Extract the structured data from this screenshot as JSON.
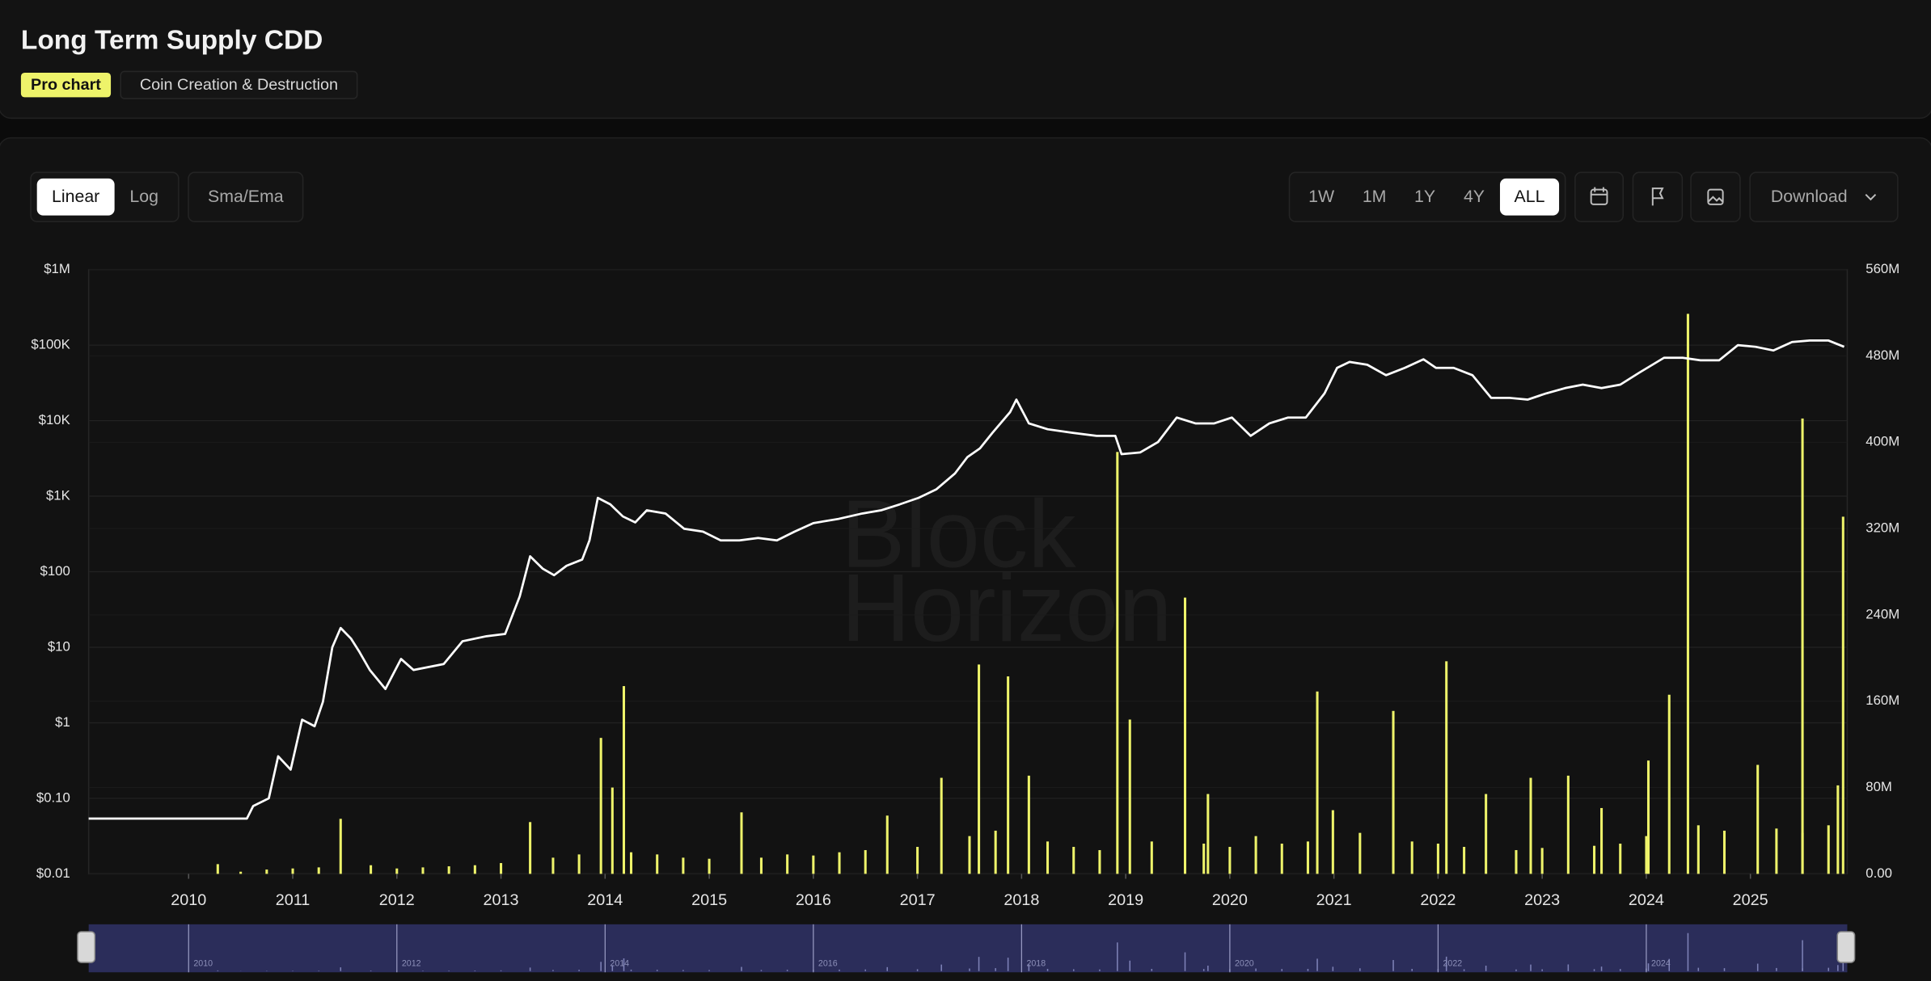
{
  "header": {
    "title": "Long Term Supply CDD",
    "badge": "Pro chart",
    "category": "Coin Creation & Destruction"
  },
  "toolbar": {
    "scale": [
      "Linear",
      "Log"
    ],
    "overlay": "Sma/Ema",
    "ranges": [
      "1W",
      "1M",
      "1Y",
      "4Y",
      "ALL"
    ],
    "download": "Download"
  },
  "watermark": [
    "Block",
    "Horizon"
  ],
  "chart_data": {
    "type": "combo",
    "xlim": [
      2009.04,
      2025.93
    ],
    "xticks": [
      2010,
      2011,
      2012,
      2013,
      2014,
      2015,
      2016,
      2017,
      2018,
      2019,
      2020,
      2021,
      2022,
      2023,
      2024,
      2025
    ],
    "ylim": [
      0.01,
      1000000
    ],
    "log_scale": true,
    "yticks": [
      {
        "value": 0.01,
        "label": "$0.01"
      },
      {
        "value": 0.1,
        "label": "$0.10"
      },
      {
        "value": 1,
        "label": "$1"
      },
      {
        "value": 10,
        "label": "$10"
      },
      {
        "value": 100,
        "label": "$100"
      },
      {
        "value": 1000,
        "label": "$1K"
      },
      {
        "value": 10000,
        "label": "$10K"
      },
      {
        "value": 100000,
        "label": "$100K"
      },
      {
        "value": 1000000,
        "label": "$1M"
      }
    ],
    "y2lim": [
      0,
      560000000
    ],
    "y2ticks": [
      {
        "value": 0,
        "label": "0.00"
      },
      {
        "value": 80000000,
        "label": "80M"
      },
      {
        "value": 160000000,
        "label": "160M"
      },
      {
        "value": 240000000,
        "label": "240M"
      },
      {
        "value": 320000000,
        "label": "320M"
      },
      {
        "value": 400000000,
        "label": "400M"
      },
      {
        "value": 480000000,
        "label": "480M"
      },
      {
        "value": 560000000,
        "label": "560M"
      }
    ],
    "grid": true,
    "series": [
      {
        "type": "line",
        "color": "#ffffff",
        "axis": "y",
        "x": [
          2009.04,
          2010.56,
          2010.62,
          2010.77,
          2010.86,
          2010.98,
          2011.09,
          2011.21,
          2011.29,
          2011.38,
          2011.46,
          2011.56,
          2011.64,
          2011.74,
          2011.89,
          2012.04,
          2012.16,
          2012.45,
          2012.63,
          2012.86,
          2013.04,
          2013.18,
          2013.28,
          2013.4,
          2013.51,
          2013.63,
          2013.78,
          2013.85,
          2013.93,
          2014.05,
          2014.17,
          2014.29,
          2014.4,
          2014.58,
          2014.76,
          2014.94,
          2015.11,
          2015.29,
          2015.47,
          2015.65,
          2015.82,
          2016.0,
          2016.24,
          2016.47,
          2016.65,
          2016.83,
          2017.01,
          2017.18,
          2017.36,
          2017.48,
          2017.6,
          2017.72,
          2017.89,
          2017.95,
          2018.07,
          2018.25,
          2018.49,
          2018.72,
          2018.9,
          2018.96,
          2019.14,
          2019.31,
          2019.49,
          2019.67,
          2019.85,
          2020.02,
          2020.2,
          2020.38,
          2020.56,
          2020.73,
          2020.91,
          2021.03,
          2021.15,
          2021.32,
          2021.5,
          2021.68,
          2021.86,
          2021.98,
          2022.15,
          2022.33,
          2022.51,
          2022.69,
          2022.86,
          2023.04,
          2023.22,
          2023.39,
          2023.57,
          2023.75,
          2023.93,
          2024.17,
          2024.35,
          2024.52,
          2024.7,
          2024.88,
          2025.05,
          2025.22,
          2025.4,
          2025.57,
          2025.75,
          2025.9
        ],
        "values": [
          0.054,
          0.054,
          0.079,
          0.1,
          0.36,
          0.24,
          1.1,
          0.9,
          1.9,
          10,
          18,
          13,
          8.7,
          5,
          2.8,
          7,
          5,
          6,
          12,
          14,
          15,
          47,
          160,
          110,
          90,
          120,
          145,
          260,
          950,
          780,
          540,
          450,
          650,
          590,
          370,
          340,
          260,
          260,
          280,
          260,
          340,
          440,
          500,
          590,
          650,
          780,
          950,
          1230,
          2000,
          3300,
          4300,
          6900,
          13000,
          19000,
          9200,
          7700,
          6900,
          6300,
          6300,
          3600,
          3800,
          5200,
          11000,
          9200,
          9200,
          11000,
          6300,
          9200,
          11000,
          11000,
          23000,
          50000,
          60000,
          55000,
          40000,
          50000,
          65000,
          50000,
          50000,
          40000,
          20000,
          20000,
          19000,
          23000,
          27000,
          30000,
          27000,
          30000,
          43000,
          68000,
          68000,
          63000,
          63000,
          100000,
          95000,
          85000,
          110000,
          115000,
          115000,
          95000
        ]
      },
      {
        "type": "bar",
        "color": "#eef36a",
        "axis": "y2",
        "x": [
          2010.5,
          2010.75,
          2011,
          2011.25,
          2011.75,
          2012,
          2012.25,
          2012.5,
          2012.75,
          2013,
          2013.5,
          2013.75,
          2014.25,
          2014.5,
          2014.75,
          2015,
          2015.5,
          2015.75,
          2016,
          2016.25,
          2016.5,
          2017,
          2017.5,
          2017.75,
          2018.25,
          2018.5,
          2018.75,
          2019.25,
          2019.75,
          2020,
          2020.25,
          2020.5,
          2020.75,
          2021.25,
          2021.75,
          2022,
          2022.25,
          2022.75,
          2023,
          2023.5,
          2023.75,
          2024,
          2024.5,
          2024.75,
          2025.25,
          2025.5,
          2025.75,
          2010.28,
          2011.46,
          2013.28,
          2013.96,
          2014.07,
          2014.18,
          2015.31,
          2016.71,
          2017.23,
          2017.59,
          2017.87,
          2018.07,
          2018.92,
          2019.04,
          2019.57,
          2019.79,
          2020.84,
          2020.99,
          2021.57,
          2022.08,
          2022.46,
          2022.89,
          2023.25,
          2023.57,
          2024.02,
          2024.22,
          2024.4,
          2025.07,
          2025.5,
          2025.84,
          2025.89
        ],
        "values": [
          2000000,
          4000000,
          5000000,
          6000000,
          8000000,
          5000000,
          6000000,
          7000000,
          8000000,
          10000000,
          15000000,
          18000000,
          20000000,
          18000000,
          15000000,
          14000000,
          15000000,
          18000000,
          17000000,
          20000000,
          22000000,
          25000000,
          35000000,
          40000000,
          30000000,
          25000000,
          22000000,
          30000000,
          28000000,
          25000000,
          35000000,
          28000000,
          30000000,
          38000000,
          30000000,
          28000000,
          25000000,
          22000000,
          24000000,
          26000000,
          28000000,
          35000000,
          45000000,
          40000000,
          42000000,
          38000000,
          45000000,
          9000000,
          51000000,
          48000000,
          126000000,
          80000000,
          174000000,
          57000000,
          54000000,
          89000000,
          194000000,
          183000000,
          91000000,
          391000000,
          143000000,
          256000000,
          74000000,
          169000000,
          59000000,
          151000000,
          197000000,
          74000000,
          89000000,
          91000000,
          61000000,
          105000000,
          166000000,
          519000000,
          101000000,
          422000000,
          82000000,
          331000000
        ]
      }
    ]
  },
  "navigator": {
    "ticks": [
      2010,
      2012,
      2014,
      2016,
      2018,
      2020,
      2022,
      2024
    ]
  }
}
